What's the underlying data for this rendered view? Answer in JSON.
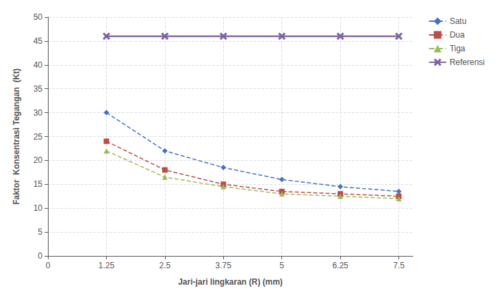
{
  "chart_data": {
    "type": "line",
    "x": [
      1.25,
      2.5,
      3.75,
      5.0,
      6.25,
      7.5
    ],
    "series": [
      {
        "name": "Satu",
        "color": "#4472C4",
        "values": [
          30.0,
          22.0,
          18.5,
          16.0,
          14.5,
          13.5
        ],
        "marker": "diamond",
        "line_style": "dashed"
      },
      {
        "name": "Dua",
        "color": "#BE4B48",
        "values": [
          24.0,
          18.0,
          15.0,
          13.5,
          13.0,
          12.5
        ],
        "marker": "square",
        "line_style": "dashed"
      },
      {
        "name": "Tiga",
        "color": "#9BBB59",
        "values": [
          22.0,
          16.5,
          14.5,
          13.0,
          12.5,
          12.0
        ],
        "marker": "triangle",
        "line_style": "dashed"
      },
      {
        "name": "Referensi",
        "color": "#8064A2",
        "values": [
          46.0,
          46.0,
          46.0,
          46.0,
          46.0,
          46.0
        ],
        "marker": "x",
        "line_style": "solid"
      }
    ],
    "xlabel": "Jari-jari lingkaran (R) (mm)",
    "ylabel": "Faktor  Konsentrasi Tegangan  (Kt)",
    "xlim": [
      0,
      7.8
    ],
    "ylim": [
      0,
      50
    ],
    "xticks": [
      0,
      1.25,
      2.5,
      3.75,
      5,
      6.25,
      7.5
    ],
    "yticks": [
      0,
      5,
      10,
      15,
      20,
      25,
      30,
      35,
      40,
      45,
      50
    ],
    "grid": true,
    "legend": "right"
  }
}
